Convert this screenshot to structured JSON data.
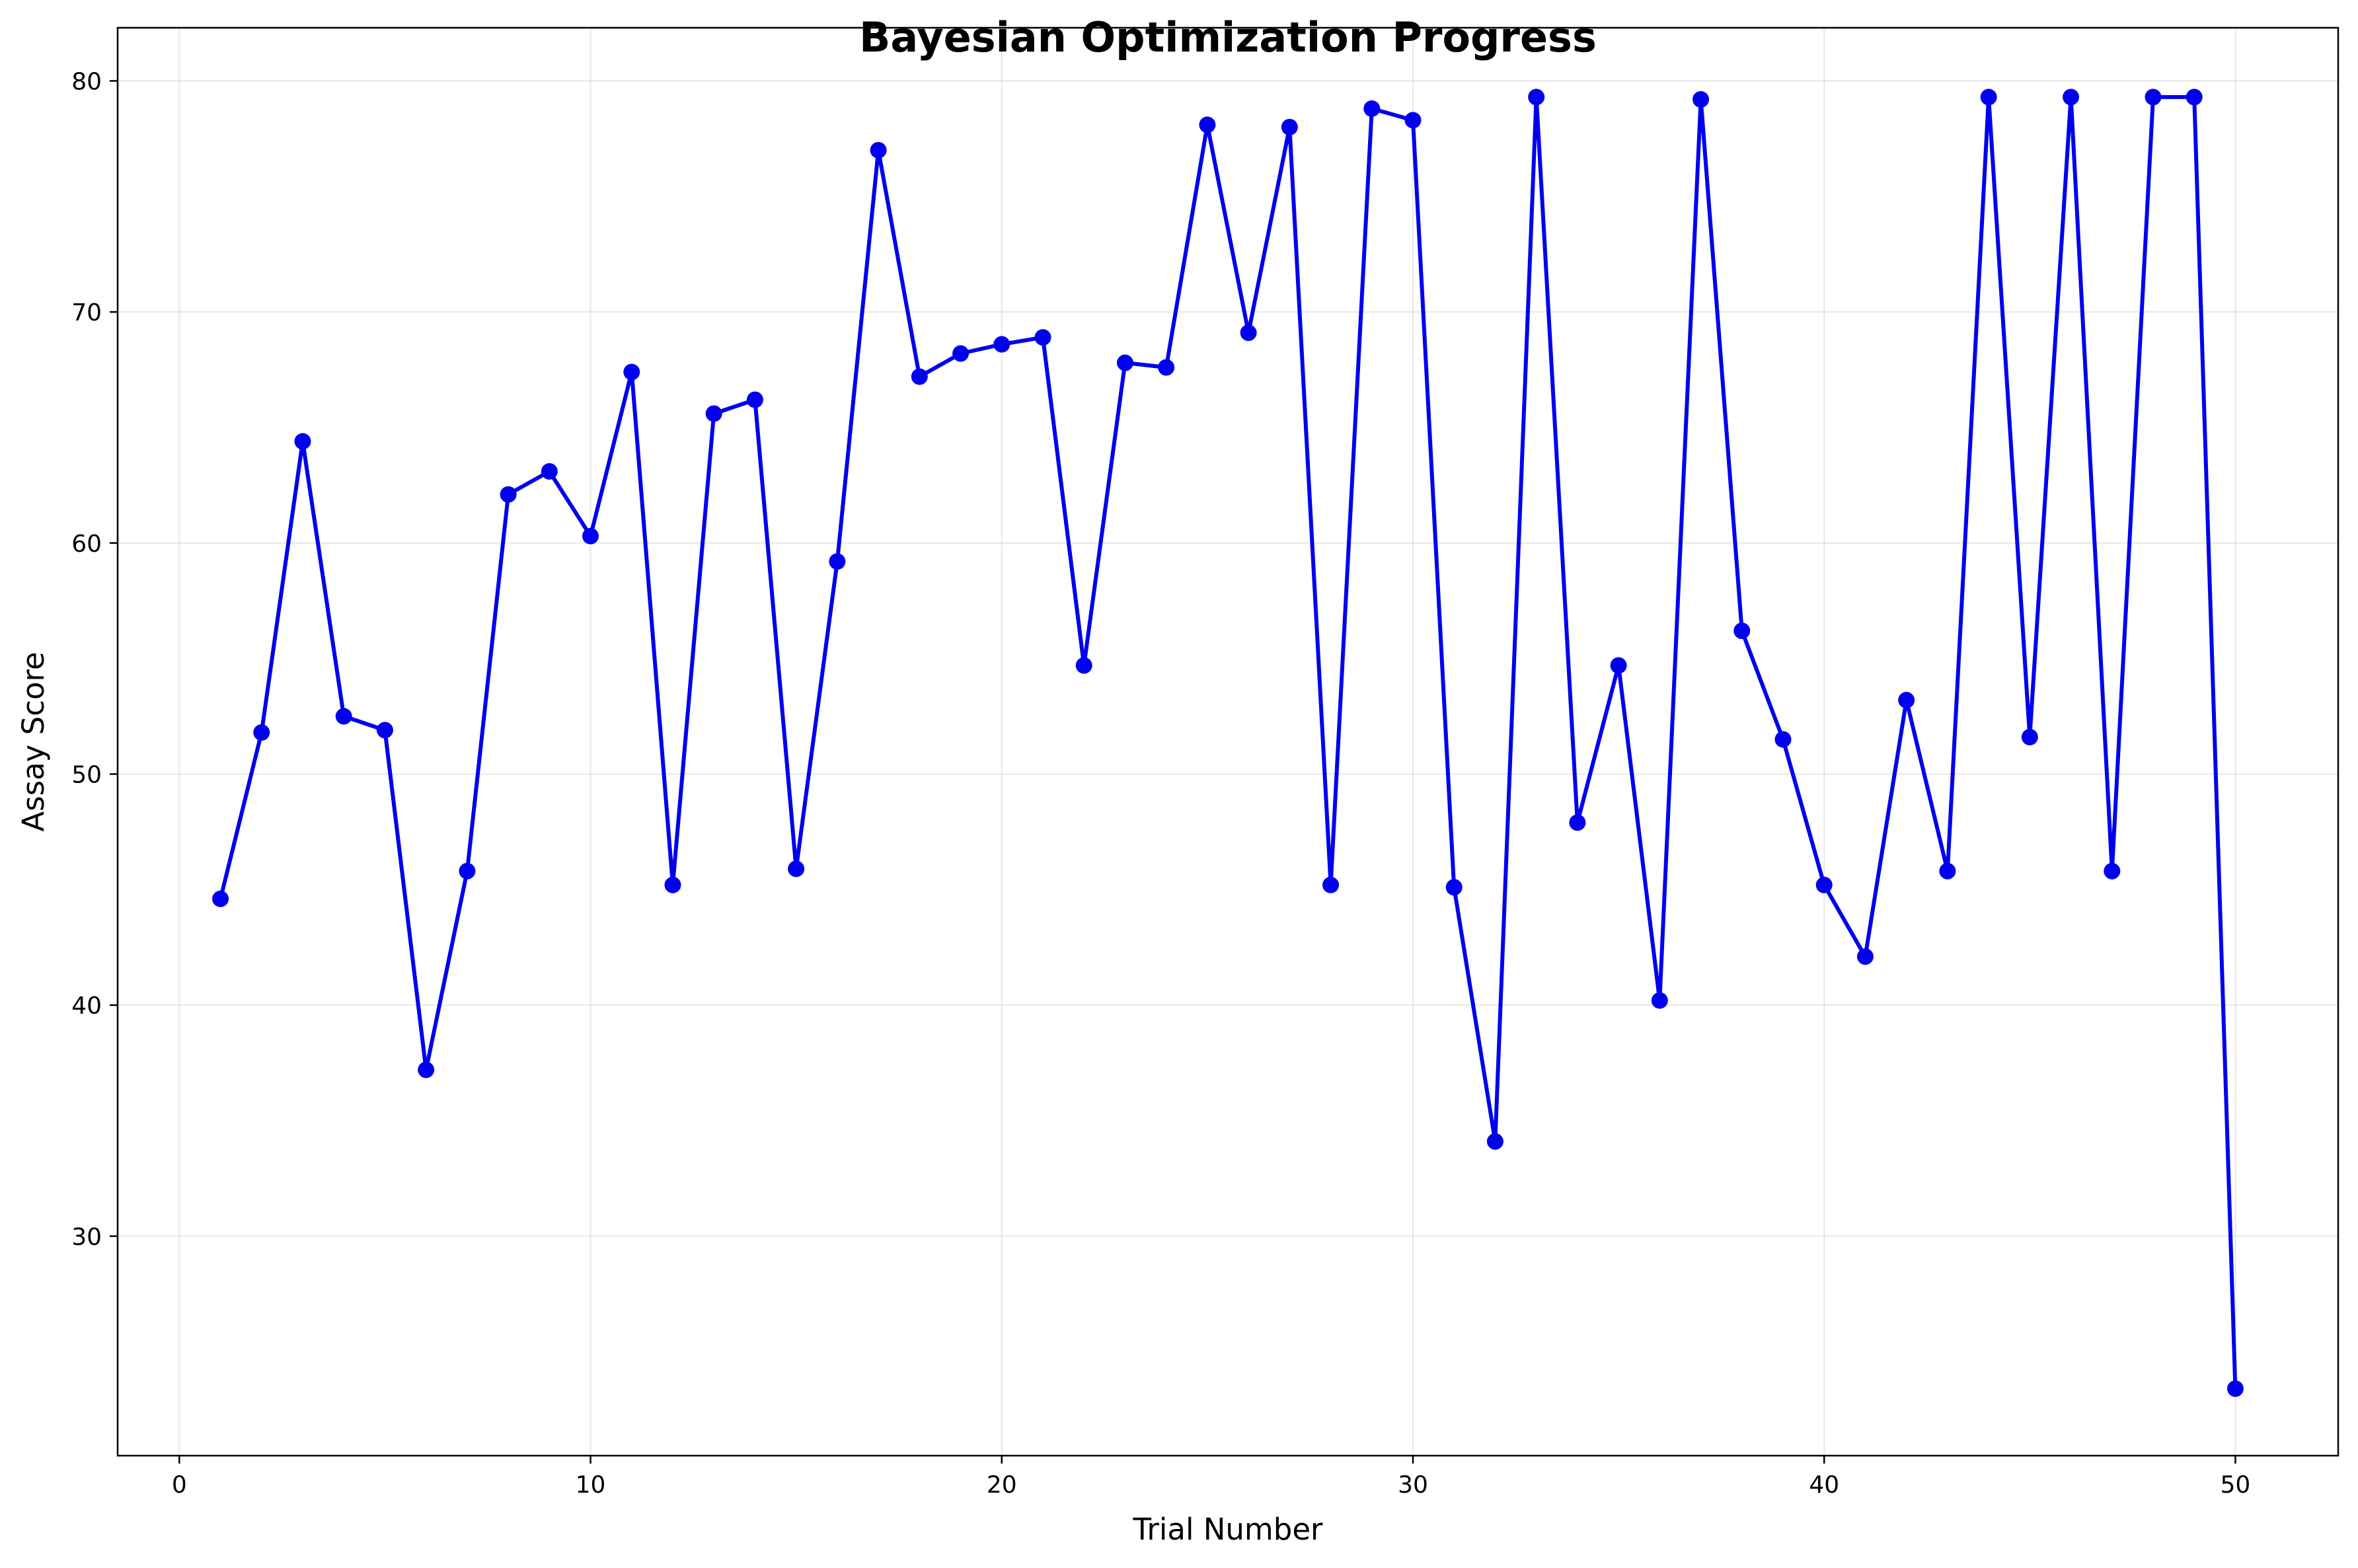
{
  "chart_data": {
    "type": "line",
    "title": "Bayesian Optimization Progress",
    "xlabel": "Trial Number",
    "ylabel": "Assay Score",
    "xlim": [
      -1.5,
      52.5
    ],
    "ylim": [
      20.5,
      82.3
    ],
    "xticks": [
      0,
      10,
      20,
      30,
      40,
      50
    ],
    "yticks": [
      30,
      40,
      50,
      60,
      70,
      80
    ],
    "grid": true,
    "legend": "none",
    "series": [
      {
        "color": "#0000ee",
        "marker": "circle",
        "x": [
          1,
          2,
          3,
          4,
          5,
          6,
          7,
          8,
          9,
          10,
          11,
          12,
          13,
          14,
          15,
          16,
          17,
          18,
          19,
          20,
          21,
          22,
          23,
          24,
          25,
          26,
          27,
          28,
          29,
          30,
          31,
          32,
          33,
          34,
          35,
          36,
          37,
          38,
          39,
          40,
          41,
          42,
          43,
          44,
          45,
          46,
          47,
          48,
          49,
          50
        ],
        "y": [
          44.6,
          51.8,
          64.4,
          52.5,
          51.9,
          37.2,
          45.8,
          62.1,
          63.1,
          60.3,
          67.4,
          45.2,
          65.6,
          66.2,
          45.9,
          59.2,
          77.0,
          67.2,
          68.2,
          68.6,
          68.9,
          54.7,
          67.8,
          67.6,
          78.1,
          69.1,
          78.0,
          45.2,
          78.8,
          78.3,
          45.1,
          34.1,
          79.3,
          47.9,
          54.7,
          40.2,
          79.2,
          56.2,
          51.5,
          45.2,
          42.1,
          53.2,
          45.8,
          79.3,
          51.6,
          79.3,
          45.8,
          79.3,
          79.3,
          23.4
        ]
      }
    ]
  }
}
